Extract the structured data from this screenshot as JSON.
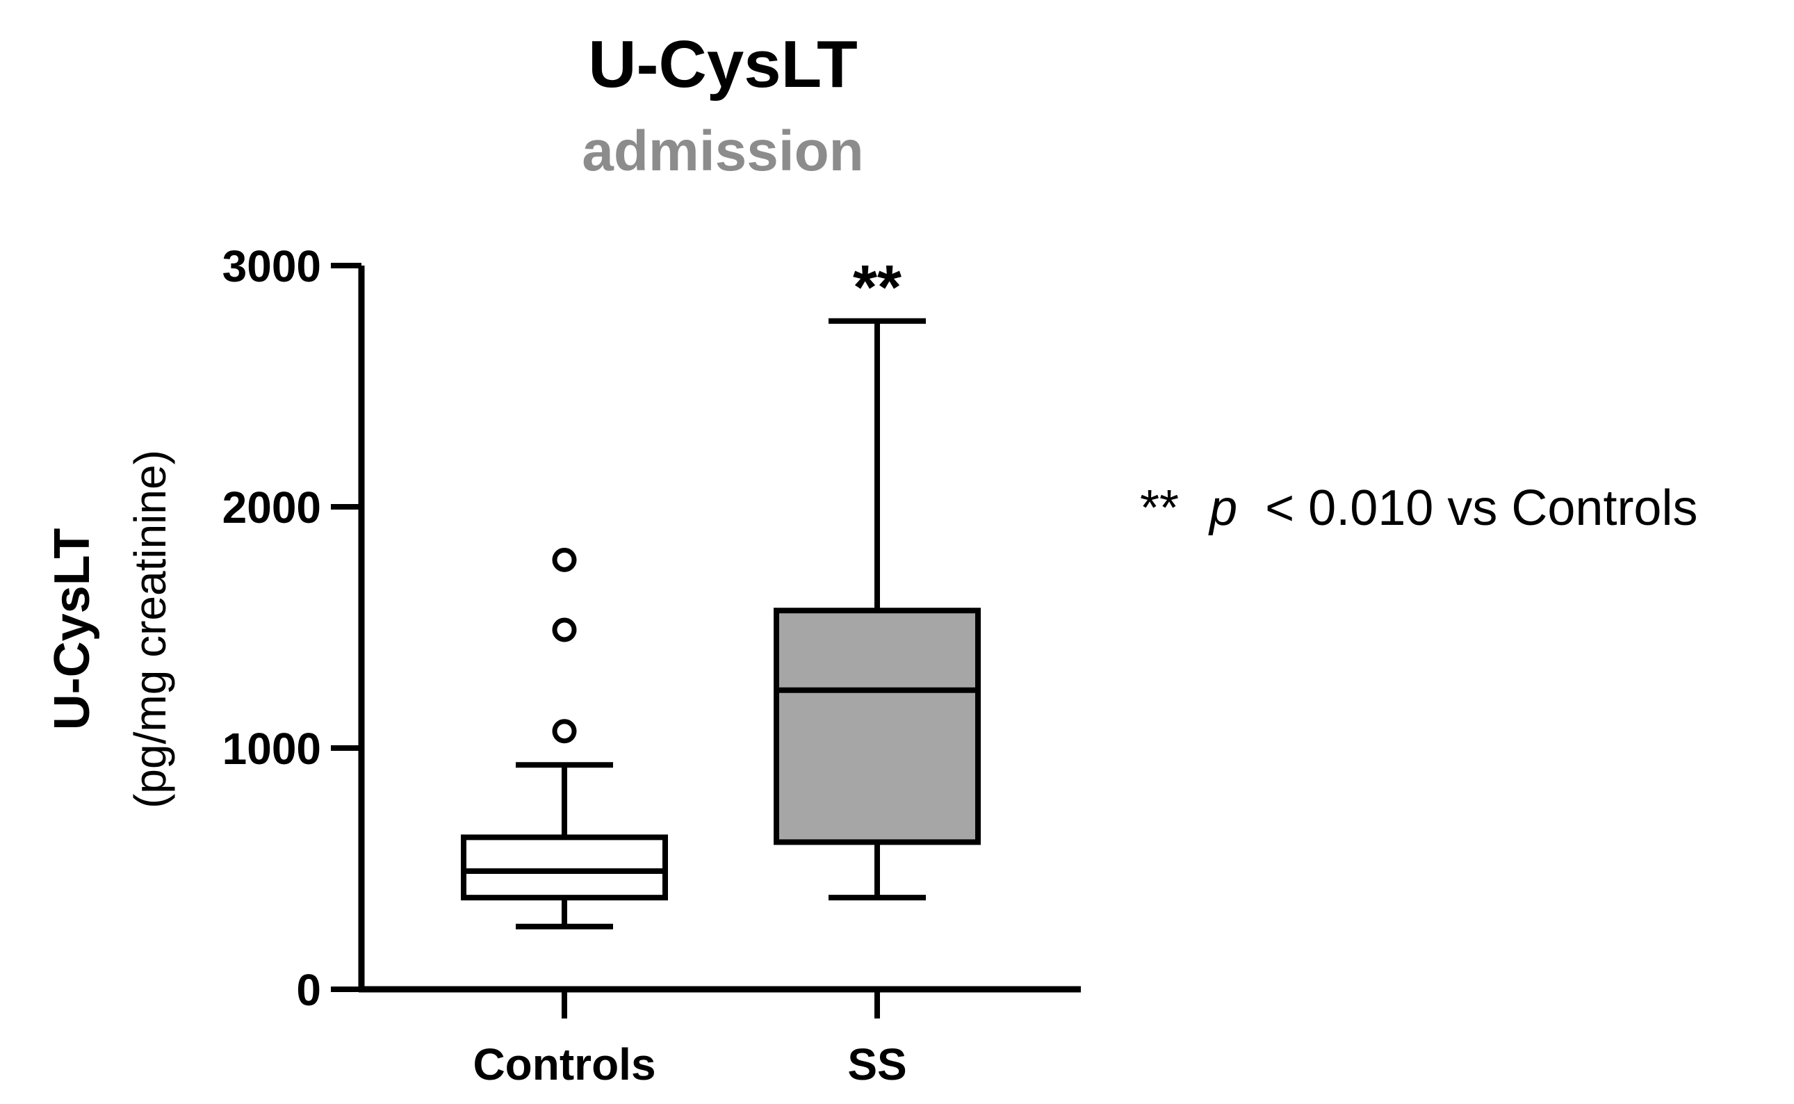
{
  "chart_data": {
    "type": "box",
    "title": "U-CysLT",
    "subtitle": "admission",
    "ylabel": "U-CysLT",
    "ylabel_unit": "(pg/mg creatinine)",
    "xlabel": "",
    "ylim": [
      0,
      3000
    ],
    "yticks": [
      0,
      1000,
      2000,
      3000
    ],
    "ytick_labels": [
      "0",
      "1000",
      "2000",
      "3000"
    ],
    "categories": [
      "Controls",
      "SS"
    ],
    "series": [
      {
        "category": "Controls",
        "whisker_low": 260,
        "q1": 380,
        "median": 490,
        "q3": 630,
        "whisker_high": 930,
        "outliers": [
          1070,
          1490,
          1780
        ],
        "fill": "#ffffff",
        "significance": ""
      },
      {
        "category": "SS",
        "whisker_low": 380,
        "q1": 610,
        "median": 1240,
        "q3": 1570,
        "whisker_high": 2770,
        "outliers": [],
        "fill": "#a6a6a6",
        "significance": "**"
      }
    ],
    "annotation": {
      "marker": "**",
      "p_symbol": "p",
      "text": "< 0.010 vs Controls"
    },
    "colors": {
      "axis": "#000000",
      "title": "#000000",
      "subtitle": "#8c8c8c",
      "ss_fill": "#a6a6a6",
      "controls_fill": "#ffffff"
    }
  }
}
